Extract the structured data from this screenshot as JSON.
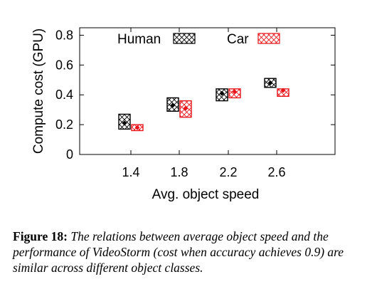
{
  "chart_data": {
    "type": "boxplot",
    "xlabel": "Avg. object speed",
    "ylabel": "Compute cost (GPU)",
    "ylim": [
      0,
      0.85
    ],
    "yticks": [
      "0",
      "0.2",
      "0.4",
      "0.6",
      "0.8"
    ],
    "categories": [
      "1.4",
      "1.8",
      "2.2",
      "2.6"
    ],
    "series": [
      {
        "name": "Human",
        "color": "#000000",
        "pattern": "crosshatch",
        "boxes": [
          {
            "low": 0.17,
            "high": 0.27,
            "median": 0.21
          },
          {
            "low": 0.29,
            "high": 0.38,
            "median": 0.33
          },
          {
            "low": 0.36,
            "high": 0.44,
            "median": 0.41
          },
          {
            "low": 0.45,
            "high": 0.51,
            "median": 0.48
          }
        ]
      },
      {
        "name": "Car",
        "color": "#e8161b",
        "pattern": "crosshatch",
        "boxes": [
          {
            "low": 0.16,
            "high": 0.2,
            "median": 0.18
          },
          {
            "low": 0.25,
            "high": 0.36,
            "median": 0.31
          },
          {
            "low": 0.38,
            "high": 0.44,
            "median": 0.42
          },
          {
            "low": 0.39,
            "high": 0.44,
            "median": 0.43
          }
        ]
      }
    ],
    "legend": "top, inside"
  },
  "caption": {
    "label": "Figure 18:",
    "text": "The relations between average object speed and the performance of VideoStorm (cost when accuracy achieves 0.9) are similar across different object classes."
  }
}
